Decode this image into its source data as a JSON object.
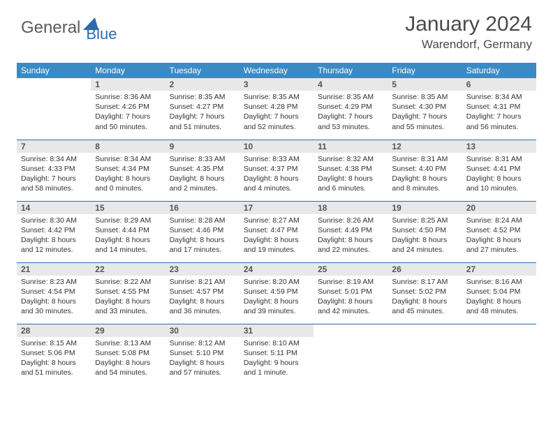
{
  "logo": {
    "word1": "General",
    "word2": "Blue"
  },
  "title": "January 2024",
  "location": "Warendorf, Germany",
  "colors": {
    "header_bg": "#3b8ac4",
    "header_text": "#ffffff",
    "daynum_bg": "#e8e8e8",
    "daynum_text": "#555555",
    "body_text": "#333333",
    "rule": "#2a6ca8",
    "logo_gray": "#5a5a5a",
    "logo_blue": "#2a6bb0"
  },
  "day_headers": [
    "Sunday",
    "Monday",
    "Tuesday",
    "Wednesday",
    "Thursday",
    "Friday",
    "Saturday"
  ],
  "weeks": [
    [
      {
        "n": "",
        "sr": "",
        "ss": "",
        "dl1": "",
        "dl2": "",
        "empty": true
      },
      {
        "n": "1",
        "sr": "Sunrise: 8:36 AM",
        "ss": "Sunset: 4:26 PM",
        "dl1": "Daylight: 7 hours",
        "dl2": "and 50 minutes."
      },
      {
        "n": "2",
        "sr": "Sunrise: 8:35 AM",
        "ss": "Sunset: 4:27 PM",
        "dl1": "Daylight: 7 hours",
        "dl2": "and 51 minutes."
      },
      {
        "n": "3",
        "sr": "Sunrise: 8:35 AM",
        "ss": "Sunset: 4:28 PM",
        "dl1": "Daylight: 7 hours",
        "dl2": "and 52 minutes."
      },
      {
        "n": "4",
        "sr": "Sunrise: 8:35 AM",
        "ss": "Sunset: 4:29 PM",
        "dl1": "Daylight: 7 hours",
        "dl2": "and 53 minutes."
      },
      {
        "n": "5",
        "sr": "Sunrise: 8:35 AM",
        "ss": "Sunset: 4:30 PM",
        "dl1": "Daylight: 7 hours",
        "dl2": "and 55 minutes."
      },
      {
        "n": "6",
        "sr": "Sunrise: 8:34 AM",
        "ss": "Sunset: 4:31 PM",
        "dl1": "Daylight: 7 hours",
        "dl2": "and 56 minutes."
      }
    ],
    [
      {
        "n": "7",
        "sr": "Sunrise: 8:34 AM",
        "ss": "Sunset: 4:33 PM",
        "dl1": "Daylight: 7 hours",
        "dl2": "and 58 minutes."
      },
      {
        "n": "8",
        "sr": "Sunrise: 8:34 AM",
        "ss": "Sunset: 4:34 PM",
        "dl1": "Daylight: 8 hours",
        "dl2": "and 0 minutes."
      },
      {
        "n": "9",
        "sr": "Sunrise: 8:33 AM",
        "ss": "Sunset: 4:35 PM",
        "dl1": "Daylight: 8 hours",
        "dl2": "and 2 minutes."
      },
      {
        "n": "10",
        "sr": "Sunrise: 8:33 AM",
        "ss": "Sunset: 4:37 PM",
        "dl1": "Daylight: 8 hours",
        "dl2": "and 4 minutes."
      },
      {
        "n": "11",
        "sr": "Sunrise: 8:32 AM",
        "ss": "Sunset: 4:38 PM",
        "dl1": "Daylight: 8 hours",
        "dl2": "and 6 minutes."
      },
      {
        "n": "12",
        "sr": "Sunrise: 8:31 AM",
        "ss": "Sunset: 4:40 PM",
        "dl1": "Daylight: 8 hours",
        "dl2": "and 8 minutes."
      },
      {
        "n": "13",
        "sr": "Sunrise: 8:31 AM",
        "ss": "Sunset: 4:41 PM",
        "dl1": "Daylight: 8 hours",
        "dl2": "and 10 minutes."
      }
    ],
    [
      {
        "n": "14",
        "sr": "Sunrise: 8:30 AM",
        "ss": "Sunset: 4:42 PM",
        "dl1": "Daylight: 8 hours",
        "dl2": "and 12 minutes."
      },
      {
        "n": "15",
        "sr": "Sunrise: 8:29 AM",
        "ss": "Sunset: 4:44 PM",
        "dl1": "Daylight: 8 hours",
        "dl2": "and 14 minutes."
      },
      {
        "n": "16",
        "sr": "Sunrise: 8:28 AM",
        "ss": "Sunset: 4:46 PM",
        "dl1": "Daylight: 8 hours",
        "dl2": "and 17 minutes."
      },
      {
        "n": "17",
        "sr": "Sunrise: 8:27 AM",
        "ss": "Sunset: 4:47 PM",
        "dl1": "Daylight: 8 hours",
        "dl2": "and 19 minutes."
      },
      {
        "n": "18",
        "sr": "Sunrise: 8:26 AM",
        "ss": "Sunset: 4:49 PM",
        "dl1": "Daylight: 8 hours",
        "dl2": "and 22 minutes."
      },
      {
        "n": "19",
        "sr": "Sunrise: 8:25 AM",
        "ss": "Sunset: 4:50 PM",
        "dl1": "Daylight: 8 hours",
        "dl2": "and 24 minutes."
      },
      {
        "n": "20",
        "sr": "Sunrise: 8:24 AM",
        "ss": "Sunset: 4:52 PM",
        "dl1": "Daylight: 8 hours",
        "dl2": "and 27 minutes."
      }
    ],
    [
      {
        "n": "21",
        "sr": "Sunrise: 8:23 AM",
        "ss": "Sunset: 4:54 PM",
        "dl1": "Daylight: 8 hours",
        "dl2": "and 30 minutes."
      },
      {
        "n": "22",
        "sr": "Sunrise: 8:22 AM",
        "ss": "Sunset: 4:55 PM",
        "dl1": "Daylight: 8 hours",
        "dl2": "and 33 minutes."
      },
      {
        "n": "23",
        "sr": "Sunrise: 8:21 AM",
        "ss": "Sunset: 4:57 PM",
        "dl1": "Daylight: 8 hours",
        "dl2": "and 36 minutes."
      },
      {
        "n": "24",
        "sr": "Sunrise: 8:20 AM",
        "ss": "Sunset: 4:59 PM",
        "dl1": "Daylight: 8 hours",
        "dl2": "and 39 minutes."
      },
      {
        "n": "25",
        "sr": "Sunrise: 8:19 AM",
        "ss": "Sunset: 5:01 PM",
        "dl1": "Daylight: 8 hours",
        "dl2": "and 42 minutes."
      },
      {
        "n": "26",
        "sr": "Sunrise: 8:17 AM",
        "ss": "Sunset: 5:02 PM",
        "dl1": "Daylight: 8 hours",
        "dl2": "and 45 minutes."
      },
      {
        "n": "27",
        "sr": "Sunrise: 8:16 AM",
        "ss": "Sunset: 5:04 PM",
        "dl1": "Daylight: 8 hours",
        "dl2": "and 48 minutes."
      }
    ],
    [
      {
        "n": "28",
        "sr": "Sunrise: 8:15 AM",
        "ss": "Sunset: 5:06 PM",
        "dl1": "Daylight: 8 hours",
        "dl2": "and 51 minutes."
      },
      {
        "n": "29",
        "sr": "Sunrise: 8:13 AM",
        "ss": "Sunset: 5:08 PM",
        "dl1": "Daylight: 8 hours",
        "dl2": "and 54 minutes."
      },
      {
        "n": "30",
        "sr": "Sunrise: 8:12 AM",
        "ss": "Sunset: 5:10 PM",
        "dl1": "Daylight: 8 hours",
        "dl2": "and 57 minutes."
      },
      {
        "n": "31",
        "sr": "Sunrise: 8:10 AM",
        "ss": "Sunset: 5:11 PM",
        "dl1": "Daylight: 9 hours",
        "dl2": "and 1 minute."
      },
      {
        "n": "",
        "sr": "",
        "ss": "",
        "dl1": "",
        "dl2": "",
        "empty": true
      },
      {
        "n": "",
        "sr": "",
        "ss": "",
        "dl1": "",
        "dl2": "",
        "empty": true
      },
      {
        "n": "",
        "sr": "",
        "ss": "",
        "dl1": "",
        "dl2": "",
        "empty": true
      }
    ]
  ]
}
